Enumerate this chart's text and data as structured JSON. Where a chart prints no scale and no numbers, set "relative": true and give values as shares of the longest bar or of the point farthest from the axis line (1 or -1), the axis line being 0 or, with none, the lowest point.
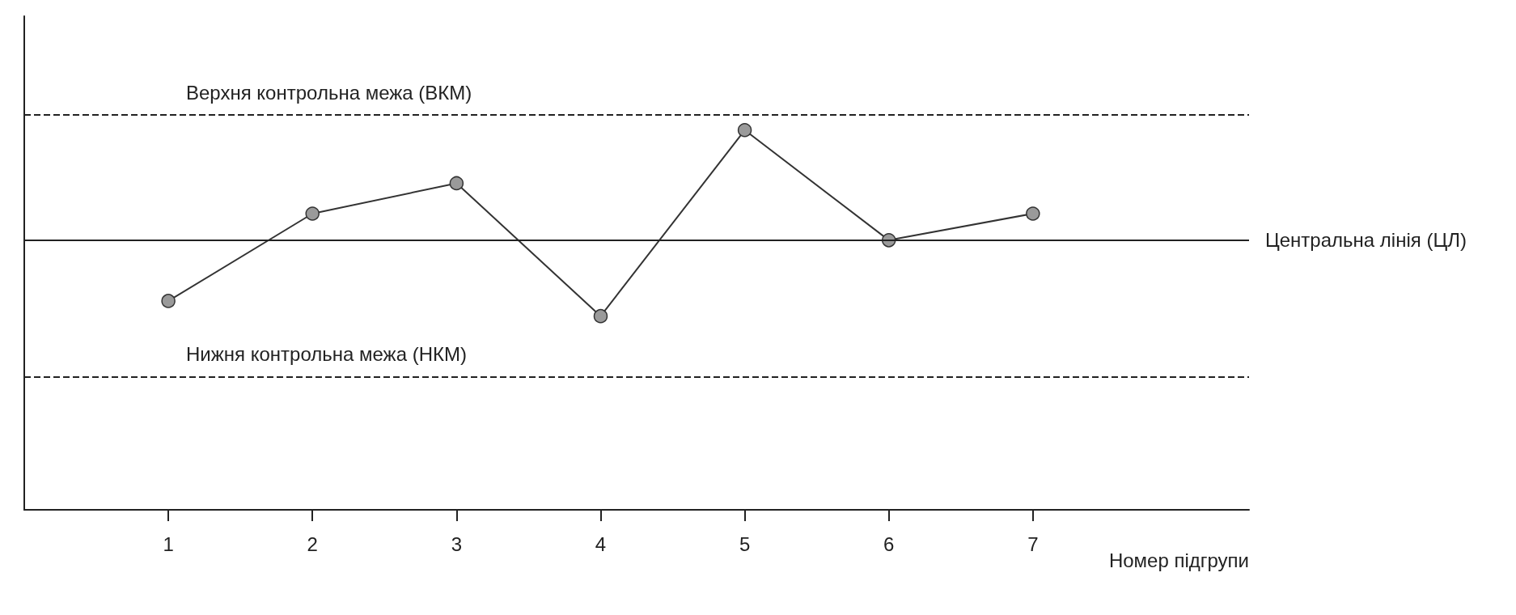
{
  "chart_data": {
    "type": "line",
    "relative": true,
    "xlabel": "Номер підгрупи",
    "x": [
      1,
      2,
      3,
      4,
      5,
      6,
      7
    ],
    "xlim": [
      0,
      8.5
    ],
    "xticks": [
      1,
      2,
      3,
      4,
      5,
      6,
      7
    ],
    "series": [
      {
        "color": "#333333",
        "values": [
          0.55,
          0.78,
          0.86,
          0.51,
          1,
          0.71,
          0.78
        ]
      }
    ],
    "marker": "circle",
    "line_style": "solid",
    "grid": false,
    "tick_labels": "x",
    "ref_lines": [
      {
        "axis": "y",
        "value": 1.04,
        "label": "Верхня контрольна межа (ВКМ)",
        "line_style": "dashed",
        "color": "#222222"
      },
      {
        "axis": "y",
        "value": 0.71,
        "label": "Центральна лінія (ЦЛ)",
        "line_style": "solid",
        "color": "#222222"
      },
      {
        "axis": "y",
        "value": 0.35,
        "label": "Нижня контрольна межа (НКМ)",
        "line_style": "dashed",
        "color": "#222222"
      }
    ]
  }
}
